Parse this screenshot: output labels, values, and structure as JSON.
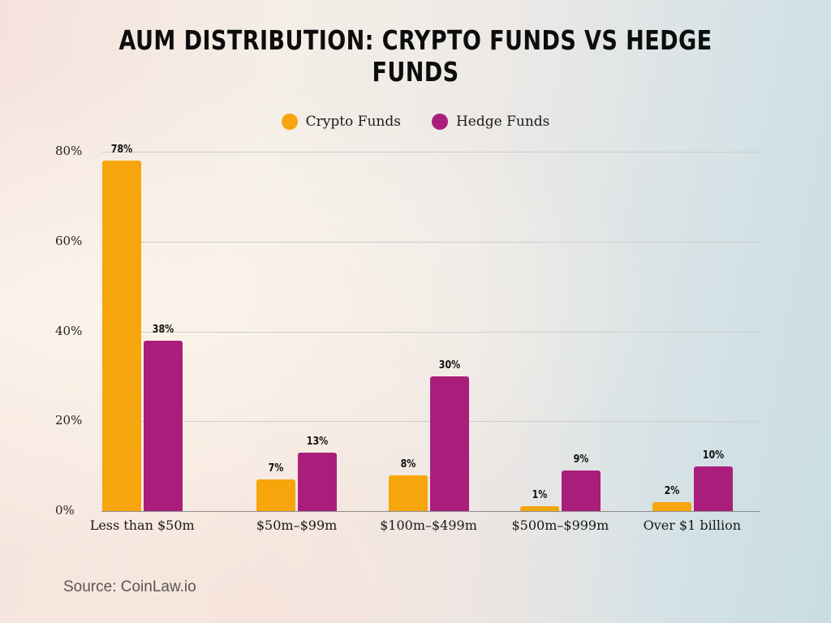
{
  "title": "AUM Distribution: Crypto Funds vs Hedge Funds",
  "legend": [
    {
      "label": "Crypto Funds",
      "color": "#f7a50c"
    },
    {
      "label": "Hedge Funds",
      "color": "#aa1e7b"
    }
  ],
  "source": "Source: CoinLaw.io",
  "chart_data": {
    "type": "bar",
    "title": "AUM Distribution: Crypto Funds vs Hedge Funds",
    "xlabel": "",
    "ylabel": "",
    "categories": [
      "Less than $50m",
      "$50m–$99m",
      "$100m–$499m",
      "$500m–$999m",
      "Over $1 billion"
    ],
    "series": [
      {
        "name": "Crypto Funds",
        "color": "#f7a50c",
        "values": [
          78,
          7,
          8,
          1,
          2
        ],
        "labels": [
          "78%",
          "7%",
          "8%",
          "1%",
          "2%"
        ]
      },
      {
        "name": "Hedge Funds",
        "color": "#aa1e7b",
        "values": [
          38,
          13,
          30,
          9,
          10
        ],
        "labels": [
          "38%",
          "13%",
          "30%",
          "9%",
          "10%"
        ]
      }
    ],
    "ylim": [
      0,
      80
    ],
    "yticks": [
      "0%",
      "20%",
      "40%",
      "60%",
      "80%"
    ],
    "grid": true,
    "legend_position": "top"
  }
}
